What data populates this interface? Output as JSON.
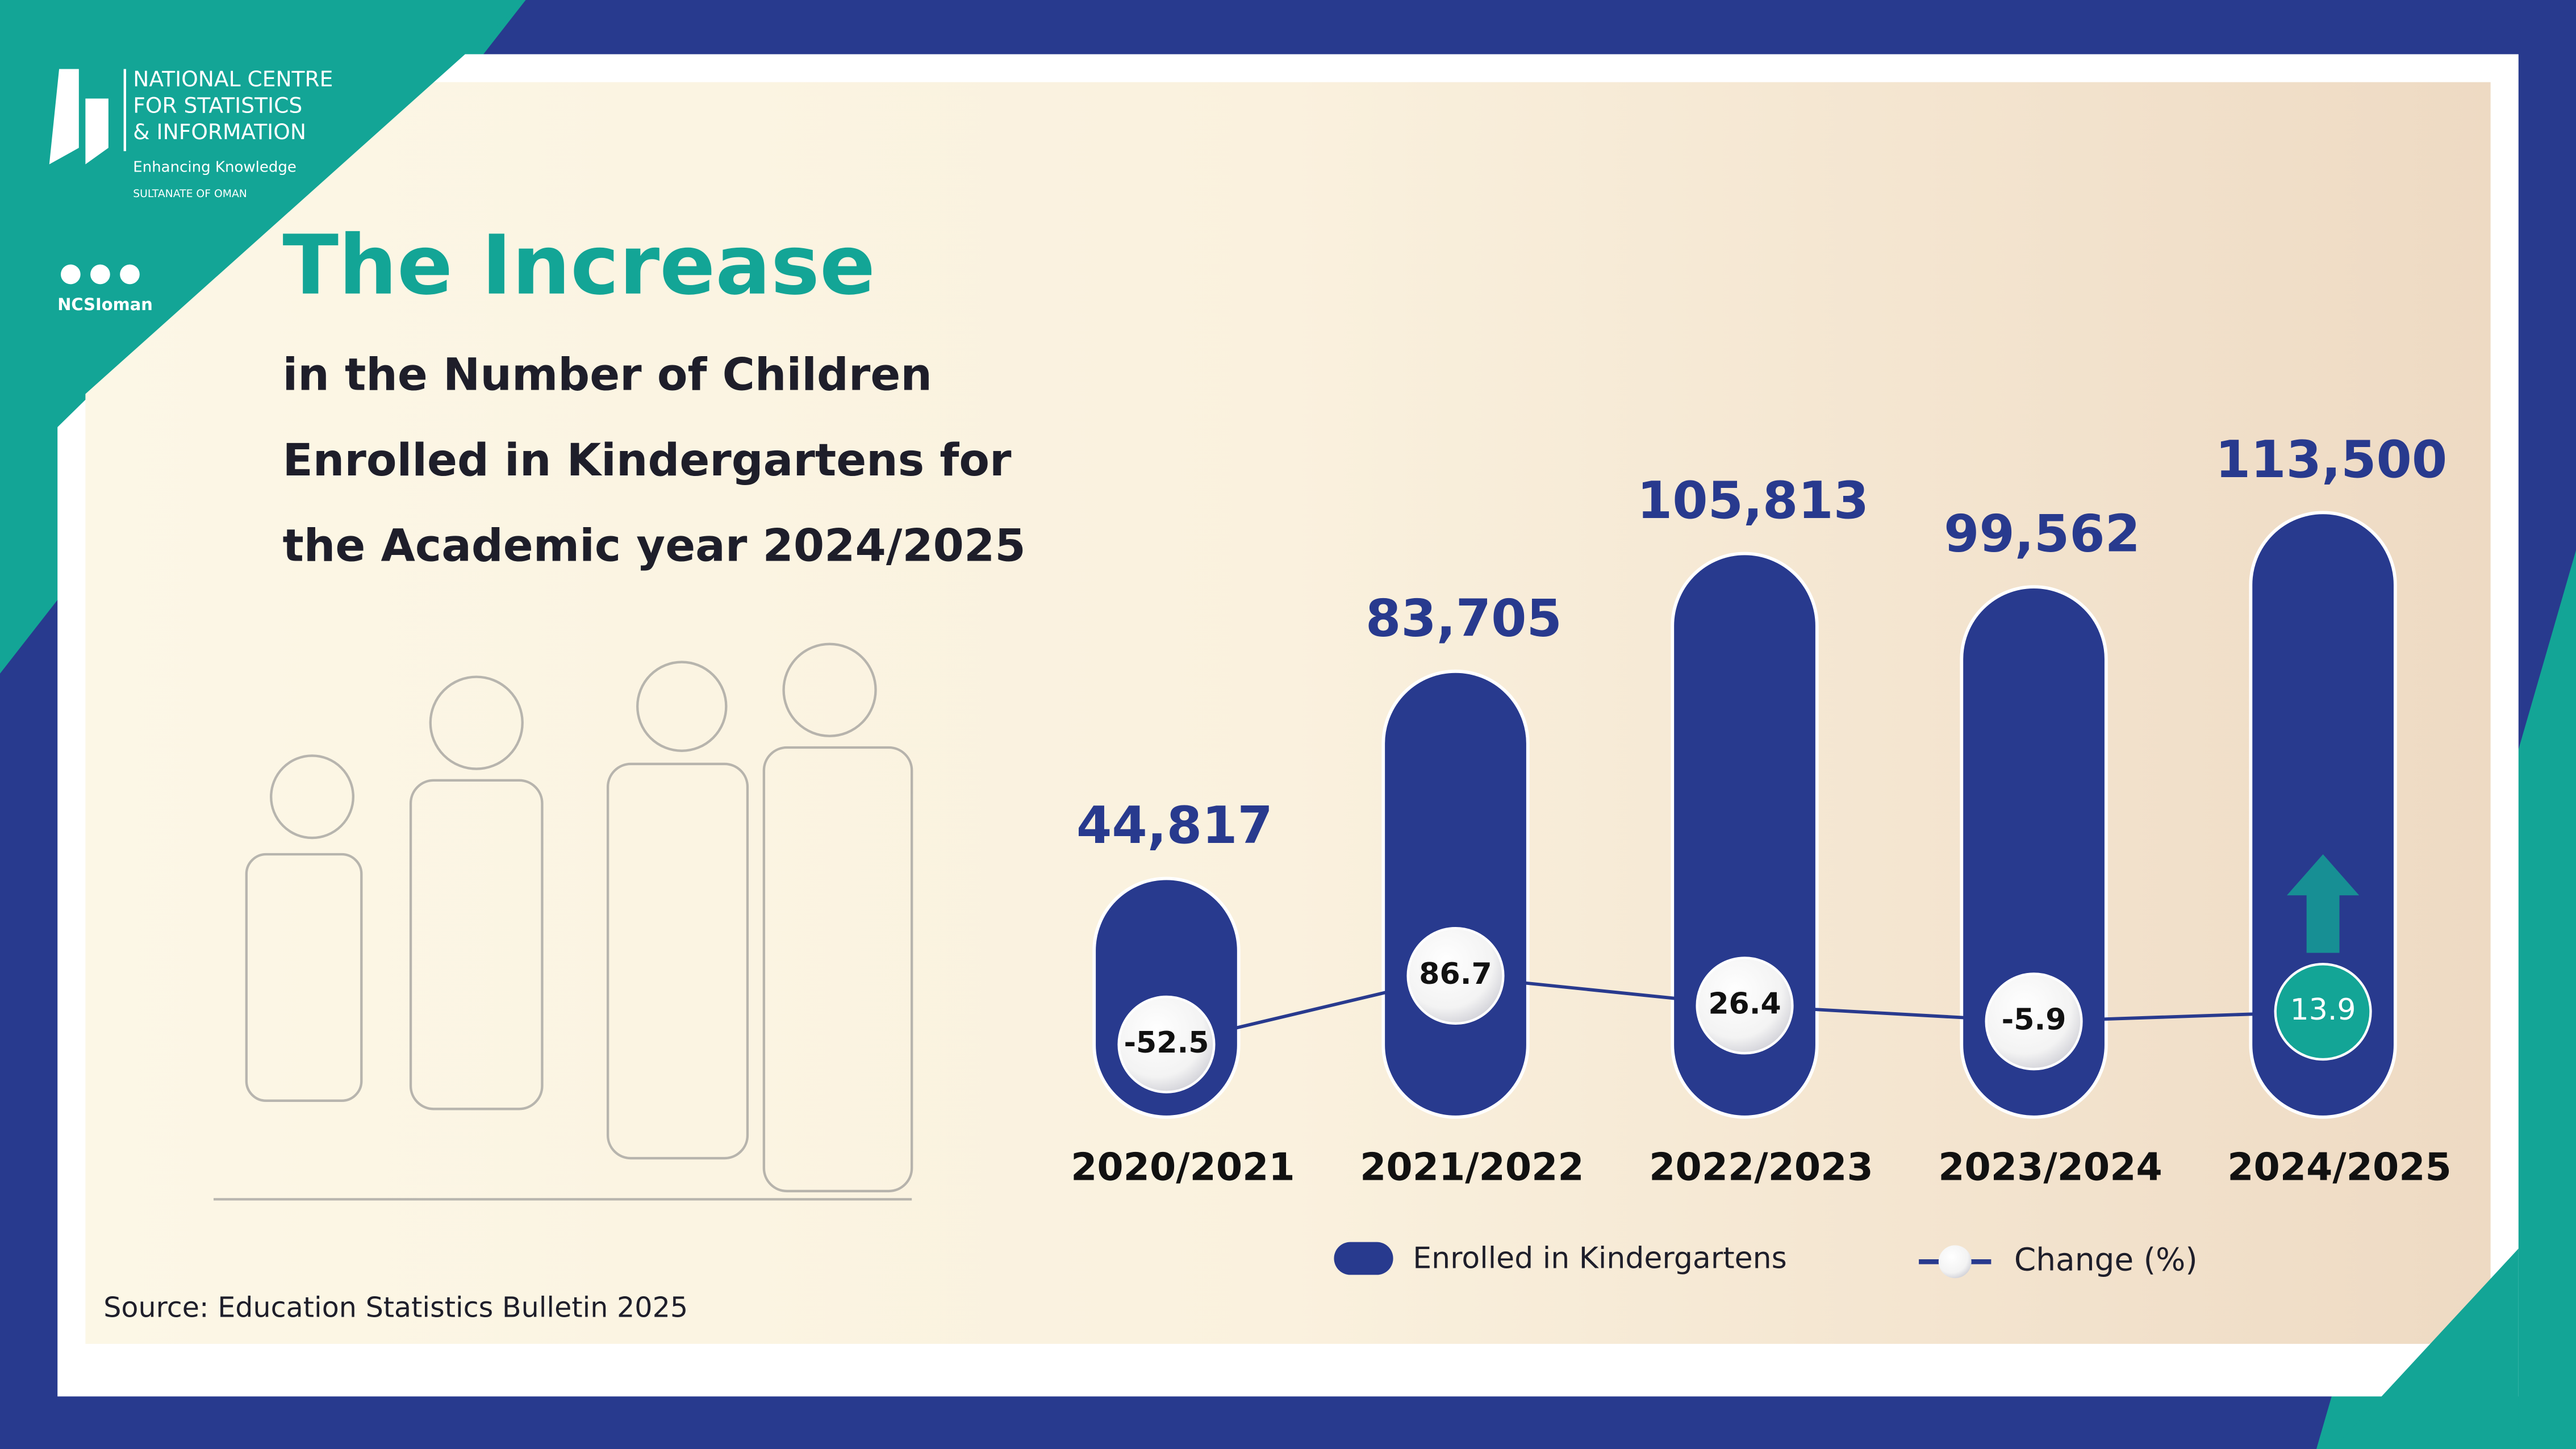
{
  "branding": {
    "org_lines": [
      "NATIONAL CENTRE",
      "FOR STATISTICS",
      "& INFORMATION"
    ],
    "tagline": "Enhancing Knowledge",
    "country": "SULTANATE OF OMAN",
    "handle": "NCSIoman"
  },
  "chart_data": {
    "type": "bar",
    "title": "The Increase",
    "subtitle_lines": [
      "in the Number of Children",
      "Enrolled in Kindergartens for",
      "the Academic year 2024/2025"
    ],
    "source": "Source: Education Statistics Bulletin 2025",
    "categories": [
      "2020/2021",
      "2021/2022",
      "2022/2023",
      "2023/2024",
      "2024/2025"
    ],
    "series": [
      {
        "name": "Enrolled in Kindergartens",
        "color": "#283a8e",
        "values": [
          44817,
          83705,
          105813,
          99562,
          113500
        ],
        "value_labels": [
          "44,817",
          "83,705",
          "105,813",
          "99,562",
          "113,500"
        ]
      },
      {
        "name": "Change (%)",
        "type": "line",
        "color": "#283a8e",
        "values": [
          -52.5,
          86.7,
          26.4,
          -5.9,
          13.9
        ],
        "last_point_color": "#13a596"
      }
    ]
  }
}
